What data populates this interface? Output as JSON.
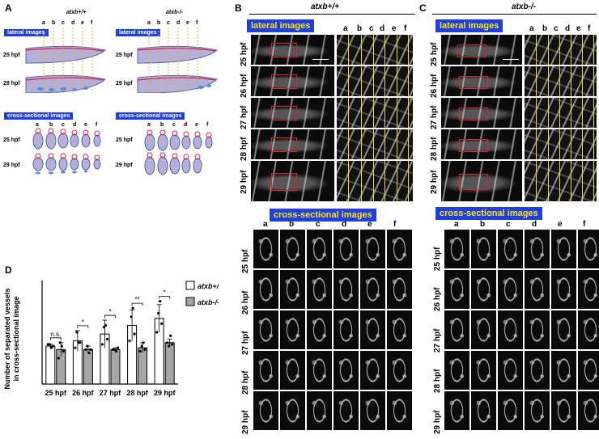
{
  "panels": {
    "A": "A",
    "B": "B",
    "C": "C",
    "D": "D"
  },
  "panel_a": {
    "genotype_wt": "atxb+/+",
    "genotype_mut": "atxb-/-",
    "lateral_label": "lateral images",
    "cross_label": "cross-sectional images",
    "letters": [
      "a",
      "b",
      "c",
      "d",
      "e",
      "f"
    ],
    "times": [
      "25 hpf",
      "29 hpf"
    ]
  },
  "panel_b": {
    "title": "atxb+/+",
    "lateral_label": "lateral images",
    "cross_label": "cross-sectional images",
    "letters": [
      "a",
      "b",
      "c",
      "d",
      "e",
      "f"
    ],
    "lateral_times": [
      "25 hpf",
      "26 hpf",
      "27 hpf",
      "28 hpf",
      "29 hpf"
    ],
    "cross_times": [
      "25 hpf",
      "26 hpf",
      "27 hpf",
      "28 hpf",
      "29 hpf"
    ]
  },
  "panel_c": {
    "title": "atxb-/-",
    "lateral_label": "lateral images",
    "cross_label": "cross-sectional images",
    "letters": [
      "a",
      "b",
      "c",
      "d",
      "e",
      "f"
    ],
    "lateral_times": [
      "25 hpf",
      "26 hpf",
      "27 hpf",
      "28 hpf",
      "29 hpf"
    ],
    "cross_times": [
      "25 hpf",
      "26 hpf",
      "27 hpf",
      "28 hpf",
      "29 hpf"
    ]
  },
  "chart_data": {
    "type": "bar",
    "ylabel": "Number of separated vessels in cross-sectional image",
    "categories": [
      "25 hpf",
      "26 hpf",
      "27 hpf",
      "28 hpf",
      "29 hpf"
    ],
    "ylim": [
      0,
      6
    ],
    "series": [
      {
        "name": "atxb+/+",
        "values": [
          2.2,
          2.5,
          2.9,
          3.4,
          3.8
        ],
        "errors": [
          0.1,
          0.6,
          0.8,
          0.9,
          0.8
        ],
        "points": [
          [
            2.3,
            2.3,
            2.1,
            2.2
          ],
          [
            2.1,
            3.0,
            2.4,
            2.4
          ],
          [
            2.3,
            3.3,
            3.4,
            2.6
          ],
          [
            2.5,
            3.9,
            4.4,
            2.9
          ],
          [
            3.0,
            4.1,
            4.8,
            3.5
          ]
        ],
        "color": "#ffffff"
      },
      {
        "name": "atxb-/-",
        "values": [
          2.0,
          2.0,
          2.0,
          2.1,
          2.4
        ],
        "errors": [
          0.4,
          0.2,
          0.1,
          0.3,
          0.2
        ],
        "points": [
          [
            1.5,
            2.4,
            2.2,
            1.9
          ],
          [
            2.0,
            2.2,
            1.8,
            2.0
          ],
          [
            2.0,
            2.0,
            1.9,
            2.1
          ],
          [
            1.9,
            2.2,
            2.4,
            2.0
          ],
          [
            2.4,
            2.2,
            2.8,
            2.3
          ]
        ],
        "color": "#a6a6a6"
      }
    ],
    "significance": [
      "n.s.",
      "*",
      "*",
      "**",
      "*"
    ]
  }
}
